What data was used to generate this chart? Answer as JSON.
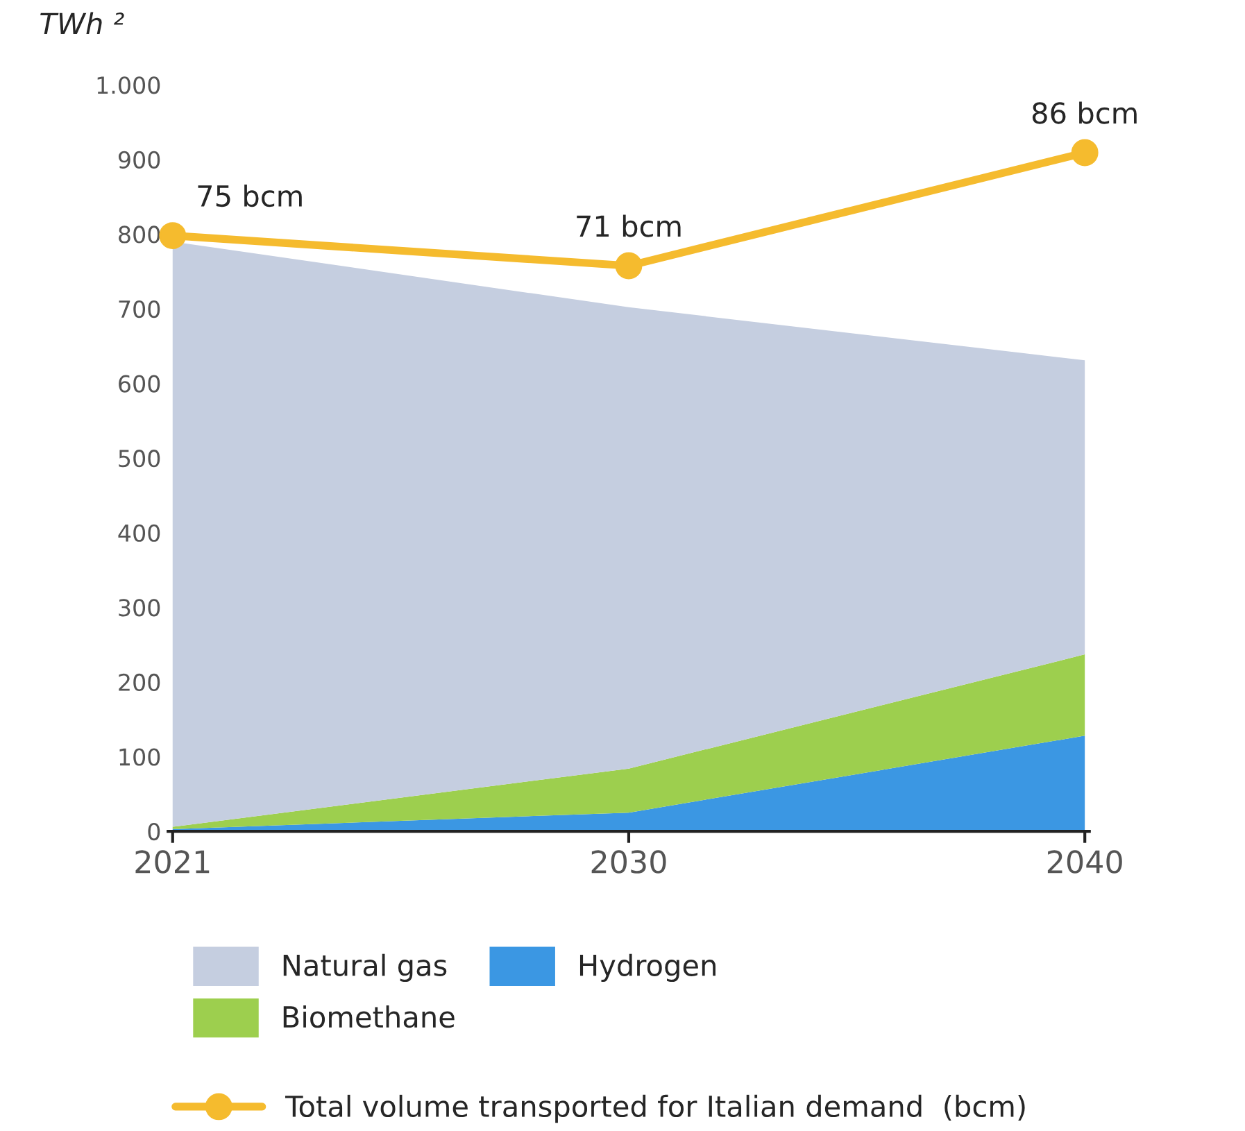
{
  "chart_data": {
    "type": "area",
    "stacked": true,
    "ylabel": "TWh ²",
    "categories": [
      "2021",
      "2030",
      "2040"
    ],
    "series": [
      {
        "name": "Hydrogen",
        "color": "#3b97e3",
        "values": [
          3,
          25,
          128
        ]
      },
      {
        "name": "Biomethane",
        "color": "#9dcf4e",
        "values": [
          3,
          59,
          109
        ]
      },
      {
        "name": "Natural gas",
        "color": "#c5cee0",
        "values": [
          784,
          618,
          394
        ]
      },
      {
        "name": "Total volume transported for Italian demand  (bcm)",
        "type": "line",
        "color": "#f5bb2e",
        "values": [
          75,
          71,
          86
        ],
        "axis": "y2",
        "value_labels": [
          "75 bcm",
          "71 bcm",
          "86 bcm"
        ],
        "marker": "circle"
      }
    ],
    "ylim": [
      0,
      1000
    ],
    "yticks": [
      0,
      100,
      200,
      300,
      400,
      500,
      600,
      700,
      800,
      900,
      {
        "value": 1000,
        "label": "1.000"
      }
    ],
    "grid": false,
    "legend": "bottom"
  }
}
